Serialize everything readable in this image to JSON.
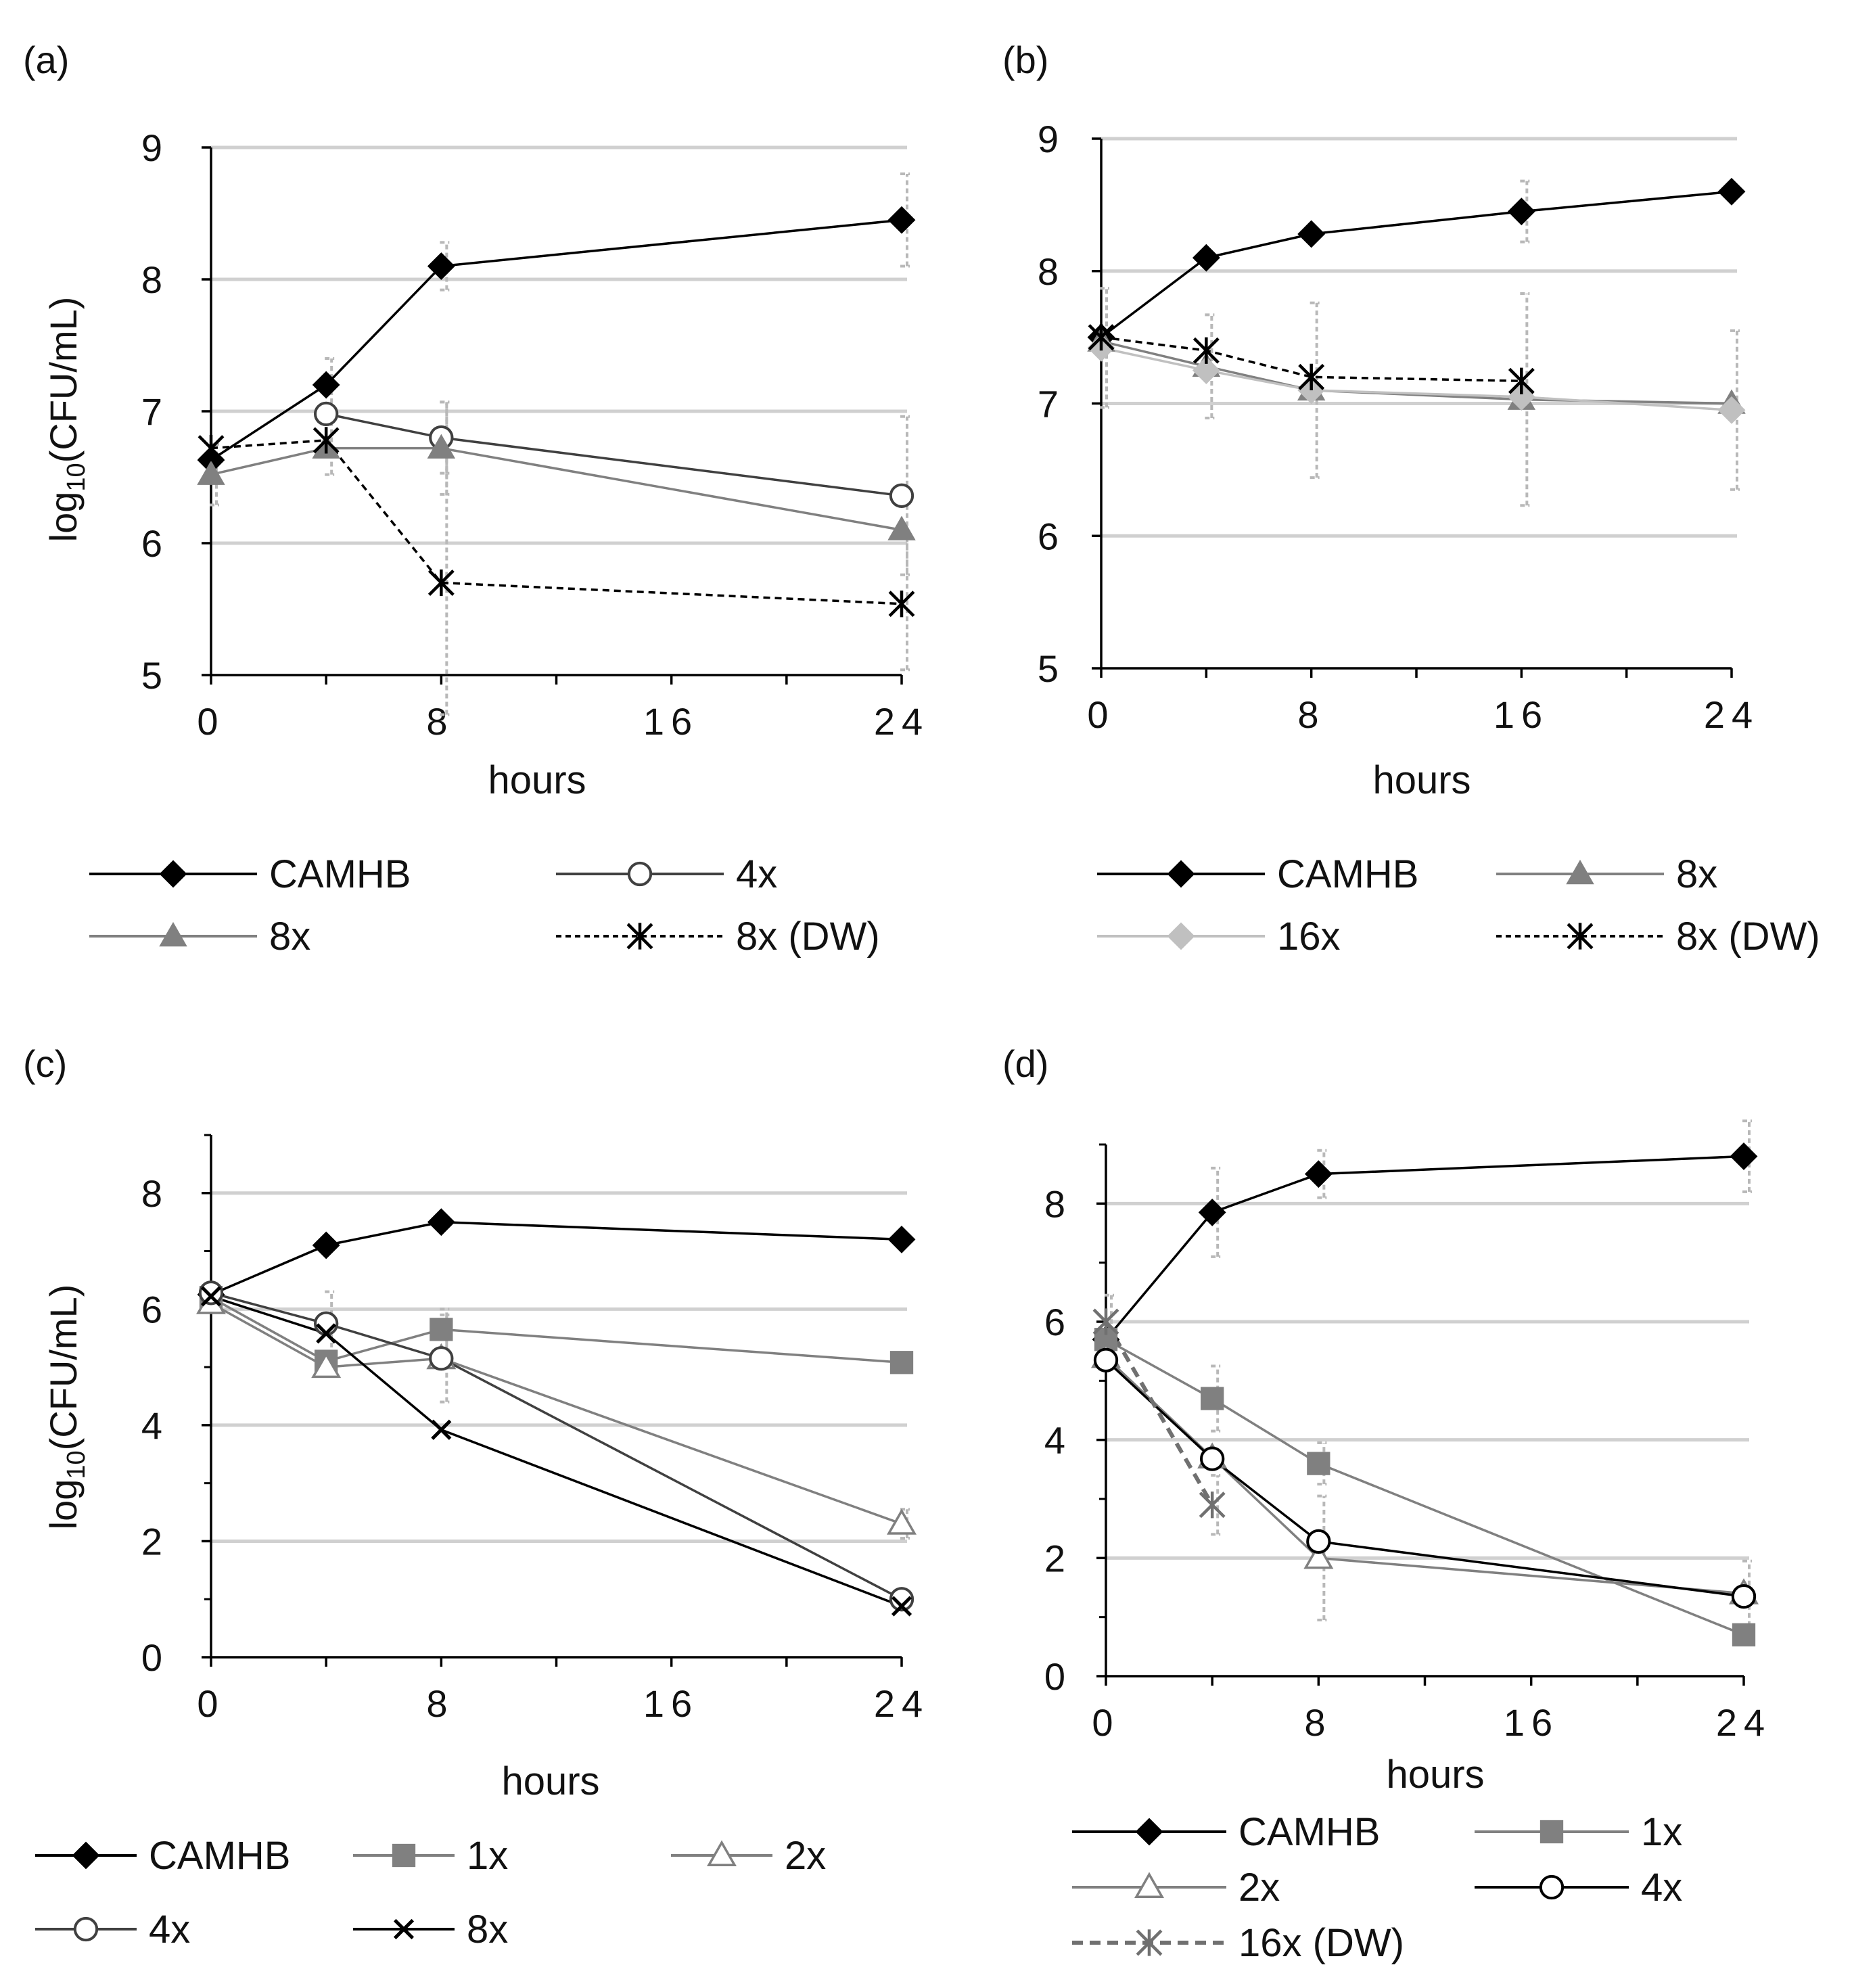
{
  "figure": {
    "ylabel": "log",
    "ylabel_sub": "10",
    "ylabel_unit": "(CFU/mL)",
    "xlabel": "hours"
  },
  "chart_data": [
    {
      "panel_label": "(a)",
      "type": "line",
      "xlabel": "hours",
      "ylabel": "log10(CFU/mL)",
      "xlim": [
        0,
        24
      ],
      "ylim": [
        5,
        9
      ],
      "xticks": [
        "0",
        "8",
        "16",
        "24"
      ],
      "yticks": [
        "5",
        "6",
        "7",
        "8",
        "9"
      ],
      "grid": true,
      "series": [
        {
          "name": "CAMHB",
          "marker": "diamond",
          "color": "#000000",
          "dash": false,
          "x": [
            0,
            4,
            8,
            24
          ],
          "y": [
            6.63,
            7.2,
            8.1,
            8.45
          ],
          "err": [
            0,
            0.2,
            0.18,
            0.35
          ]
        },
        {
          "name": "4x",
          "marker": "circle-open",
          "color": "#404040",
          "dash": false,
          "x": [
            4,
            8,
            24
          ],
          "y": [
            6.98,
            6.8,
            6.36
          ],
          "err": [
            0,
            0.27,
            0.6
          ]
        },
        {
          "name": "8x",
          "marker": "triangle",
          "color": "#808080",
          "dash": false,
          "x": [
            0,
            4,
            8,
            24
          ],
          "y": [
            6.52,
            6.72,
            6.72,
            6.1
          ],
          "err": [
            0.23,
            0.2,
            0.35,
            0
          ]
        },
        {
          "name": "8x (DW)",
          "marker": "asterisk",
          "color": "#000000",
          "dash": true,
          "x": [
            0,
            4,
            8,
            24
          ],
          "y": [
            6.72,
            6.78,
            5.7,
            5.54
          ],
          "err": [
            0,
            0,
            1.0,
            0.5
          ]
        }
      ]
    },
    {
      "panel_label": "(b)",
      "type": "line",
      "xlabel": "hours",
      "ylabel": "",
      "xlim": [
        0,
        24
      ],
      "ylim": [
        5,
        9
      ],
      "xticks": [
        "0",
        "8",
        "16",
        "24"
      ],
      "yticks": [
        "5",
        "6",
        "7",
        "8",
        "9"
      ],
      "grid": true,
      "series": [
        {
          "name": "CAMHB",
          "marker": "diamond",
          "color": "#000000",
          "dash": false,
          "x": [
            0,
            4,
            8,
            16,
            24
          ],
          "y": [
            7.5,
            8.1,
            8.28,
            8.45,
            8.6
          ],
          "err": [
            0,
            0,
            0,
            0.23,
            0
          ]
        },
        {
          "name": "8x",
          "marker": "triangle",
          "color": "#808080",
          "dash": false,
          "x": [
            0,
            4,
            8,
            16,
            24
          ],
          "y": [
            7.47,
            7.28,
            7.1,
            7.03,
            7.0
          ],
          "err": [
            0,
            0.39,
            0,
            0.8,
            0
          ]
        },
        {
          "name": "16x",
          "marker": "diamond",
          "color": "#c0c0c0",
          "dash": false,
          "x": [
            0,
            4,
            8,
            16,
            24
          ],
          "y": [
            7.42,
            7.25,
            7.1,
            7.05,
            6.95
          ],
          "err": [
            0.45,
            0,
            0.66,
            0,
            0.6
          ]
        },
        {
          "name": "8x (DW)",
          "marker": "asterisk",
          "color": "#000000",
          "dash": true,
          "x": [
            0,
            4,
            8,
            16
          ],
          "y": [
            7.5,
            7.4,
            7.2,
            7.17
          ],
          "err": [
            0,
            0,
            0,
            0
          ]
        }
      ]
    },
    {
      "panel_label": "(c)",
      "type": "line",
      "xlabel": "hours",
      "ylabel": "log10(CFU/mL)",
      "xlim": [
        0,
        24
      ],
      "ylim": [
        0,
        9
      ],
      "xticks": [
        "0",
        "8",
        "16",
        "24"
      ],
      "yticks": [
        "0",
        "2",
        "4",
        "6",
        "8"
      ],
      "grid": true,
      "series": [
        {
          "name": "CAMHB",
          "marker": "diamond",
          "color": "#000000",
          "dash": false,
          "x": [
            0,
            4,
            8,
            24
          ],
          "y": [
            6.25,
            7.1,
            7.5,
            7.2
          ],
          "err": [
            0,
            0,
            0,
            0
          ]
        },
        {
          "name": "1x",
          "marker": "square",
          "color": "#808080",
          "dash": false,
          "x": [
            0,
            4,
            8,
            24
          ],
          "y": [
            6.2,
            5.1,
            5.65,
            5.08
          ],
          "err": [
            0,
            0,
            0.35,
            0
          ]
        },
        {
          "name": "2x",
          "marker": "triangle-open",
          "color": "#808080",
          "dash": false,
          "x": [
            0,
            4,
            8,
            24
          ],
          "y": [
            6.1,
            5.0,
            5.15,
            2.3
          ],
          "err": [
            0,
            0,
            0,
            0.25
          ]
        },
        {
          "name": "4x",
          "marker": "circle-open",
          "color": "#404040",
          "dash": false,
          "x": [
            0,
            4,
            8,
            24
          ],
          "y": [
            6.28,
            5.75,
            5.15,
            1.0
          ],
          "err": [
            0,
            0.55,
            0.75,
            0
          ]
        },
        {
          "name": "8x",
          "marker": "x",
          "color": "#000000",
          "dash": false,
          "x": [
            0,
            4,
            8,
            24
          ],
          "y": [
            6.22,
            5.58,
            3.92,
            0.88
          ],
          "err": [
            0,
            0,
            0,
            0
          ]
        }
      ]
    },
    {
      "panel_label": "(d)",
      "type": "line",
      "xlabel": "hours",
      "ylabel": "",
      "xlim": [
        0,
        24
      ],
      "ylim": [
        0,
        9
      ],
      "xticks": [
        "0",
        "8",
        "16",
        "24"
      ],
      "yticks": [
        "0",
        "2",
        "4",
        "6",
        "8"
      ],
      "grid": true,
      "series": [
        {
          "name": "CAMHB",
          "marker": "diamond",
          "color": "#000000",
          "dash": false,
          "x": [
            0,
            4,
            8,
            24
          ],
          "y": [
            5.7,
            7.85,
            8.5,
            8.8
          ],
          "err": [
            0,
            0.75,
            0.4,
            0.6
          ]
        },
        {
          "name": "1x",
          "marker": "square",
          "color": "#808080",
          "dash": false,
          "x": [
            0,
            4,
            8,
            24
          ],
          "y": [
            5.7,
            4.7,
            3.6,
            0.7
          ],
          "err": [
            0,
            0.55,
            0.35,
            0
          ]
        },
        {
          "name": "2x",
          "marker": "triangle-open",
          "color": "#808080",
          "dash": false,
          "x": [
            0,
            4,
            8,
            24
          ],
          "y": [
            5.4,
            3.7,
            2.0,
            1.4
          ],
          "err": [
            0,
            0,
            1.05,
            0.55
          ]
        },
        {
          "name": "4x",
          "marker": "circle-open",
          "color": "#000000",
          "dash": false,
          "x": [
            0,
            4,
            8,
            24
          ],
          "y": [
            5.35,
            3.68,
            2.28,
            1.35
          ],
          "err": [
            0,
            0,
            0,
            0
          ]
        },
        {
          "name": "16x (DW)",
          "marker": "asterisk",
          "color": "#707070",
          "dash": true,
          "x": [
            0,
            4
          ],
          "y": [
            6.0,
            2.9
          ],
          "err": [
            0.45,
            0.5
          ]
        }
      ]
    }
  ]
}
